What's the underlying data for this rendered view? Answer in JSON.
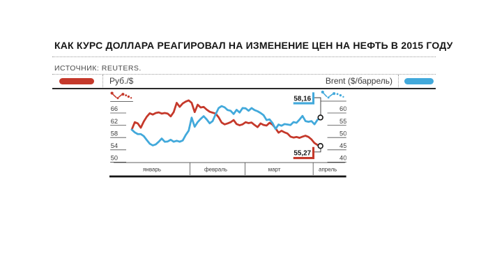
{
  "header": {
    "title": "КАК КУРС ДОЛЛАРА РЕАГИРОВАЛ НА ИЗМЕНЕНИЕ ЦЕН НА НЕФТЬ В 2015 ГОДУ",
    "source": "ИСТОЧНИК: REUTERS."
  },
  "legend": {
    "rub_label": "Руб./$",
    "brent_label": "Brent ($/баррель)"
  },
  "colors": {
    "rub": "#c5392b",
    "brent": "#42a9db",
    "ink": "#161616",
    "muted": "#3a3a3a"
  },
  "chart_data": {
    "type": "line",
    "title": "КАК КУРС ДОЛЛАРА РЕАГИРОВАЛ НА ИЗМЕНЕНИЕ ЦЕН НА НЕФТЬ В 2015 ГОДУ",
    "source": "REUTERS",
    "grid": false,
    "legend_position": "top",
    "x_axis": {
      "tick_labels": [
        "январь",
        "февраль",
        "март",
        "апрель"
      ]
    },
    "y_axis_left": {
      "name": "Руб./$",
      "ticks": [
        66,
        62,
        58,
        54,
        50
      ]
    },
    "y_axis_right": {
      "name": "Brent ($/баррель)",
      "ticks": [
        60,
        55,
        50,
        45,
        40
      ]
    },
    "series": [
      {
        "name": "Руб./$",
        "axis": "left",
        "color": "#c5392b",
        "end_label": "55,27",
        "end_value": 55.27,
        "values": [
          60.6,
          63.0,
          62.6,
          61.2,
          63.2,
          64.8,
          65.9,
          65.5,
          66.0,
          66.2,
          65.8,
          66.0,
          65.8,
          64.9,
          66.3,
          69.3,
          68.0,
          69.1,
          69.7,
          70.1,
          69.3,
          66.3,
          68.7,
          67.8,
          68.0,
          67.1,
          66.4,
          66.1,
          65.8,
          64.6,
          62.9,
          62.3,
          62.6,
          63.0,
          63.7,
          62.4,
          62.0,
          62.3,
          63.0,
          62.7,
          62.9,
          62.1,
          61.4,
          62.6,
          62.1,
          61.9,
          62.8,
          62.2,
          61.0,
          59.6,
          60.2,
          59.7,
          59.3,
          58.3,
          58.0,
          58.2,
          57.9,
          58.3,
          58.6,
          58.2,
          57.4,
          56.2,
          55.6,
          55.27
        ]
      },
      {
        "name": "Brent ($/баррель)",
        "axis": "right",
        "color": "#42a9db",
        "end_label": "58,16",
        "end_value": 58.16,
        "values": [
          53.2,
          52.1,
          51.4,
          51.4,
          50.6,
          49.0,
          47.5,
          46.8,
          47.2,
          48.3,
          49.6,
          48.3,
          48.4,
          49.1,
          48.3,
          48.7,
          48.3,
          48.8,
          51.0,
          52.8,
          58.1,
          54.4,
          56.3,
          57.6,
          58.7,
          57.4,
          55.8,
          56.7,
          59.5,
          62.0,
          62.8,
          62.3,
          61.2,
          60.9,
          59.6,
          61.3,
          60.2,
          62.0,
          61.9,
          60.9,
          62.0,
          61.2,
          60.7,
          60.0,
          59.1,
          57.1,
          57.4,
          55.9,
          53.5,
          55.3,
          54.8,
          55.5,
          55.3,
          55.1,
          56.3,
          56.0,
          57.3,
          58.8,
          56.7,
          56.4,
          56.7,
          55.4,
          57.2,
          58.16
        ]
      }
    ]
  }
}
